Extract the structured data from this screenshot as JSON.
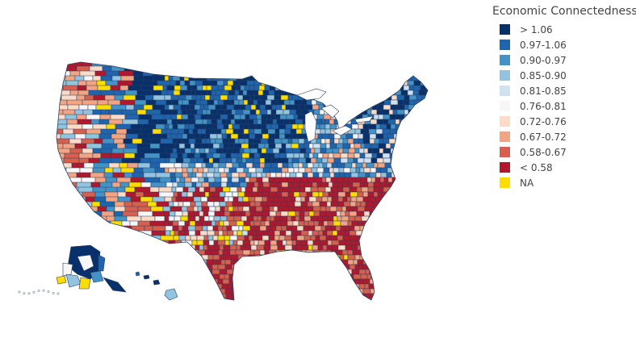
{
  "legend": {
    "title": "Economic Connectedness",
    "items": [
      {
        "label": "> 1.06",
        "color": "#08306b"
      },
      {
        "label": "0.97-1.06",
        "color": "#1f65ad"
      },
      {
        "label": "0.90-0.97",
        "color": "#4393c6"
      },
      {
        "label": "0.85-0.90",
        "color": "#93c4df"
      },
      {
        "label": "0.81-0.85",
        "color": "#d0e1f1"
      },
      {
        "label": "0.76-0.81",
        "color": "#f7f7f7"
      },
      {
        "label": "0.72-0.76",
        "color": "#fcdbc7"
      },
      {
        "label": "0.67-0.72",
        "color": "#f3a482"
      },
      {
        "label": "0.58-0.67",
        "color": "#d6604d"
      },
      {
        "label": "< 0.58",
        "color": "#b2182b"
      },
      {
        "label": "NA",
        "color": "#ffdd00"
      }
    ]
  },
  "map": {
    "type": "choropleth",
    "region": "United States counties",
    "border_color": "#2a3f5f"
  }
}
